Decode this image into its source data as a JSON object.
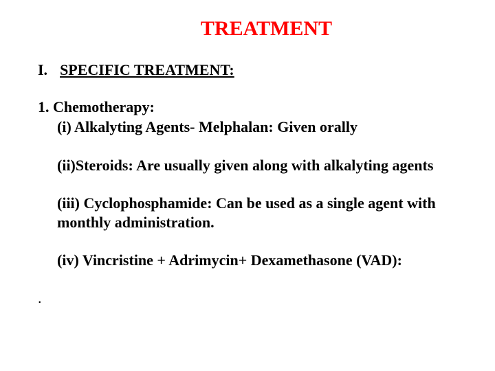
{
  "title": "TREATMENT",
  "section": {
    "roman": "I.",
    "heading": "SPECIFIC TREATMENT:"
  },
  "subheading": "1. Chemotherapy:",
  "items": [
    "(i) Alkalyting Agents-  Melphalan: Given orally",
    "(ii)Steroids: Are usually given along with alkalyting agents",
    "(iii) Cyclophosphamide:  Can be used as a single agent with monthly administration.",
    "(iv) Vincristine + Adrimycin+ Dexamethasone (VAD):"
  ],
  "dot": ".",
  "colors": {
    "title_color": "#ff0000",
    "text_color": "#000000",
    "background": "#ffffff"
  },
  "typography": {
    "title_fontsize": 30,
    "body_fontsize": 22,
    "font_family": "Times New Roman"
  }
}
